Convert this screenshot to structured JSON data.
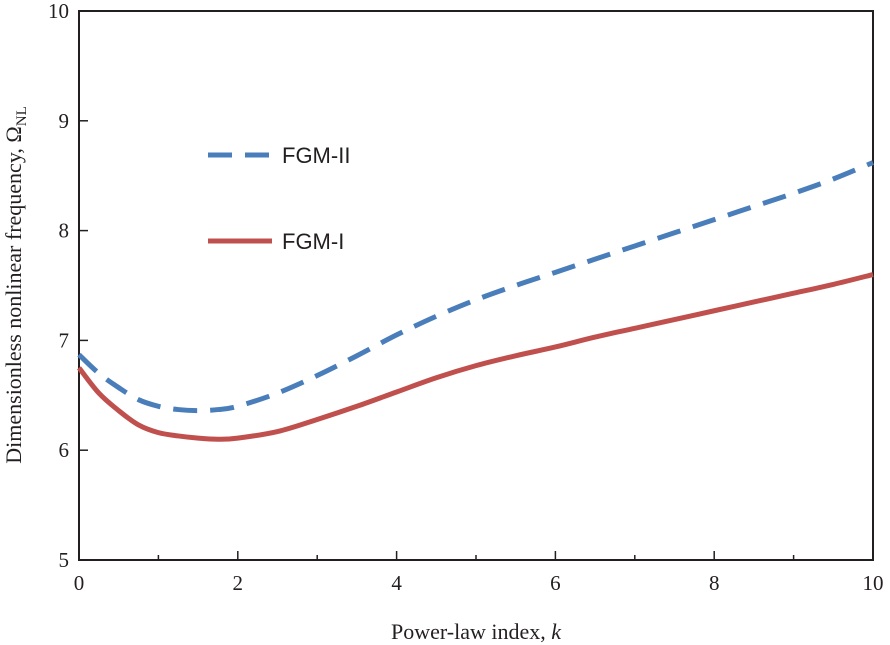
{
  "chart_data": {
    "type": "line",
    "title": "",
    "xlabel": "Power-law index, ",
    "xlabel_var": "k",
    "ylabel": "Dimensionless nonlinear frequency, Ω",
    "ylabel_sub": "NL",
    "xlim": [
      0,
      10
    ],
    "ylim": [
      5,
      10
    ],
    "xticks": [
      "0",
      "2",
      "4",
      "6",
      "8",
      "10"
    ],
    "yticks": [
      "5",
      "6",
      "7",
      "8",
      "9",
      "10"
    ],
    "grid": false,
    "legend_position": "top-left",
    "series": [
      {
        "name": "FGM-II",
        "style": "dashed",
        "color": "#4a7ebb",
        "x": [
          0,
          0.25,
          0.5,
          0.75,
          1,
          1.25,
          1.5,
          1.75,
          2,
          2.5,
          3,
          3.5,
          4,
          4.5,
          5,
          5.5,
          6,
          6.5,
          7,
          7.5,
          8,
          8.5,
          9,
          9.5,
          10
        ],
        "y": [
          6.87,
          6.7,
          6.57,
          6.46,
          6.4,
          6.37,
          6.36,
          6.37,
          6.4,
          6.52,
          6.68,
          6.86,
          7.05,
          7.22,
          7.37,
          7.5,
          7.62,
          7.74,
          7.86,
          7.98,
          8.1,
          8.22,
          8.34,
          8.47,
          8.62
        ]
      },
      {
        "name": "FGM-I",
        "style": "solid",
        "color": "#c0504d",
        "x": [
          0,
          0.25,
          0.5,
          0.75,
          1,
          1.25,
          1.5,
          1.75,
          2,
          2.5,
          3,
          3.5,
          4,
          4.5,
          5,
          5.5,
          6,
          6.5,
          7,
          7.5,
          8,
          8.5,
          9,
          9.5,
          10
        ],
        "y": [
          6.75,
          6.52,
          6.36,
          6.23,
          6.16,
          6.13,
          6.11,
          6.1,
          6.11,
          6.17,
          6.28,
          6.4,
          6.53,
          6.66,
          6.77,
          6.86,
          6.94,
          7.03,
          7.11,
          7.19,
          7.27,
          7.35,
          7.43,
          7.51,
          7.6
        ]
      }
    ]
  }
}
